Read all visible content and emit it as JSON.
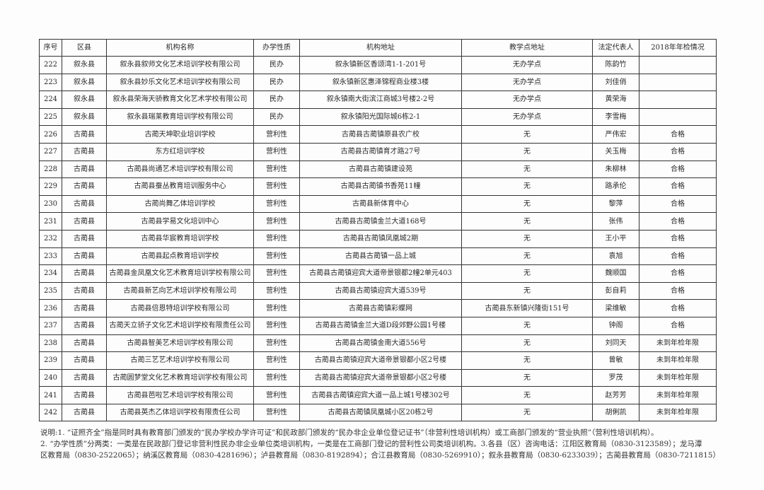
{
  "table": {
    "headers": [
      "序号",
      "区县",
      "机构名称",
      "办学性质",
      "机构地址",
      "教学点地址",
      "法定代表人",
      "2018年年检情况"
    ],
    "rows": [
      [
        "222",
        "叙永县",
        "叙永县叙师文化艺术培训学校有限公司",
        "民办",
        "叙永镇新区香颂湾1-1-201号",
        "无办学点",
        "陈韵竹",
        ""
      ],
      [
        "223",
        "叙永县",
        "叙永县妙乐文化艺术培训学校有限公司",
        "民办",
        "叙永镇新区惠泽锦程商业楼3楼",
        "无办学点",
        "刘佳俏",
        ""
      ],
      [
        "224",
        "叙永县",
        "叙永县荣海天骄教育文化艺术学校有限公司",
        "民办",
        "叙永镇南大街滨江商城3号楼2-2号",
        "无办学点",
        "黄荣海",
        ""
      ],
      [
        "225",
        "叙永县",
        "叙永县瑞莱教育培训学校有限公司",
        "民办",
        "叙永镇阳光国际城6栋2-1",
        "无办学点",
        "李雪梅",
        ""
      ],
      [
        "226",
        "古蔺县",
        "古蔺天坤职业培训学校",
        "营利性",
        "古蔺县古蔺镇原县农广校",
        "无",
        "严伟宏",
        "合格"
      ],
      [
        "227",
        "古蔺县",
        "东方红培训学校",
        "营利性",
        "古蔺县古蔺镇育才路27号",
        "无",
        "关玉梅",
        "合格"
      ],
      [
        "228",
        "古蔺县",
        "古蔺县尚通艺术培训学校有限公司",
        "营利性",
        "古蔺县古蔺镇建设苑",
        "无",
        "朱柳林",
        "合格"
      ],
      [
        "229",
        "古蔺县",
        "古蔺县蚕丛教育培训服务中心",
        "营利性",
        "古蔺县古蔺镇书香苑11幢",
        "无",
        "路承伦",
        "合格"
      ],
      [
        "230",
        "古蔺县",
        "古蔺尚舞乙体培训学校",
        "营利性",
        "古蔺县新体育中心",
        "无",
        "黎萍",
        "合格"
      ],
      [
        "231",
        "古蔺县",
        "古蔺县学易文化培训中心",
        "营利性",
        "古蔺县古蔺镇金兰大道168号",
        "无",
        "张伟",
        "合格"
      ],
      [
        "232",
        "古蔺县",
        "古蔺县华宸教育培训学校",
        "营利性",
        "古蔺县古蔺镇凤凰城2期",
        "无",
        "王小平",
        "合格"
      ],
      [
        "233",
        "古蔺县",
        "古蔺县起点教育培训学校",
        "营利性",
        "古蔺县古蔺镇一品上城",
        "无",
        "袁旭",
        "合格"
      ],
      [
        "234",
        "古蔺县",
        "古蔺县金凤凰文化艺术教育培训学校有限公司",
        "营利性",
        "古蔺县古蔺镇迎宾大道帝景银都2幢2单元403",
        "无",
        "魏顺国",
        "合格"
      ],
      [
        "235",
        "古蔺县",
        "古蔺县新艺向艺术培训学校有限公司",
        "营利性",
        "古蔺县古蔺镇迎宾大道539号",
        "无",
        "彭自莉",
        "合格"
      ],
      [
        "236",
        "古蔺县",
        "古蔺县倍恩特培训学校有限公司",
        "营利性",
        "古蔺县古蔺镇彩蝶网",
        "古蔺县东新镇兴隆街151号",
        "梁维敏",
        "合格"
      ],
      [
        "237",
        "古蔺县",
        "古蔺天立骄子文化艺术培训学校有限责任公司",
        "营利性",
        "古蔺县古蔺镇金兰大道D段郊野公园1号楼",
        "无",
        "钟阁",
        "合格"
      ],
      [
        "238",
        "古蔺县",
        "古蔺县智美艺术培训学校有限公司",
        "营利性",
        "古蔺县古蔺镇金南大道556号",
        "无",
        "刘同天",
        "未到年检年限"
      ],
      [
        "239",
        "古蔺县",
        "古蔺三艺艺术培训学校有限公司",
        "营利性",
        "古蔺县古蔺镇迎宾大道帝景银都小区2号楼",
        "无",
        "曾敏",
        "未到年检年限"
      ],
      [
        "240",
        "古蔺县",
        "古蔺圆梦堂文化艺术教育培训学校有限公司",
        "营利性",
        "古蔺县古蔺镇迎宾大道帝景银都小区2号楼",
        "无",
        "罗茂",
        "未到年检年限"
      ],
      [
        "241",
        "古蔺县",
        "古蔺县芭啦艺术培训学校有限公司",
        "营利性",
        "古蔺县古蔺镇迎宾大道一品上城1号楼302号",
        "无",
        "赵芳芳",
        "未到年检年限"
      ],
      [
        "242",
        "古蔺县",
        "古蔺县英杰乙体培训学校有限责任公司",
        "营利性",
        "古蔺县古蔺镇凤凰城小区20栋2号",
        "无",
        "胡俐凯",
        "未到年检年限"
      ]
    ]
  },
  "notes": {
    "line1": "说明:1. “证照齐全”指是同时具有教育部门颁发的“民办学校办学许可证”和民政部门颁发的“民办非企业单位登记证书”（非营利性培训机构）或工商部门颁发的“营业执照”（营利性培训机构）。",
    "line2": "2. “办学性质”分两类：一类是在民政部门登记非营利性民办非企业单位类培训机构，一类是在工商部门登记的营利性公司类培训机构。3.各县（区）咨询电话：江阳区教育局（0830-3123589）；龙马潭",
    "line3": "区教育局（0830-2522065）；纳溪区教育局（0830-4281696）；泸县教育局（0830-8192894）；合江县教育局（0830-5269910）；叙永县教育局（0830-6233039）；古蔺县教育局（0830-7211815）"
  }
}
